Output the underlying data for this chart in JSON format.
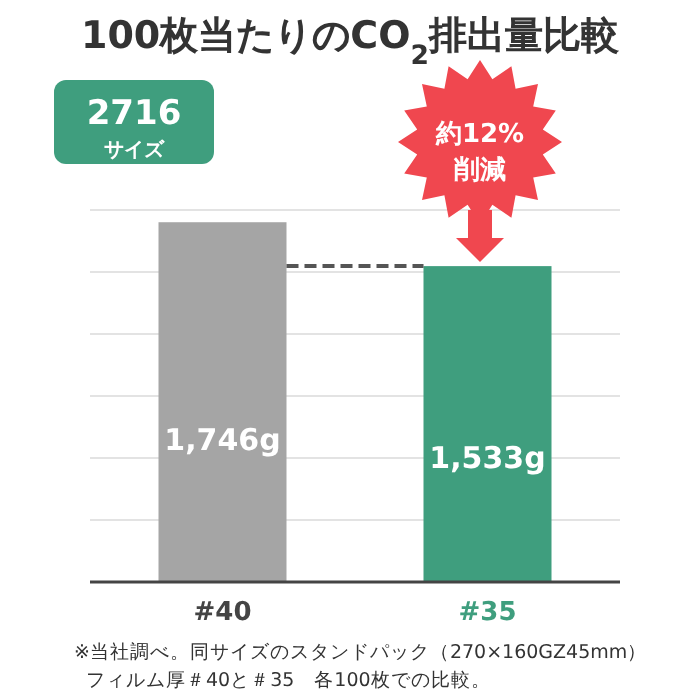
{
  "chart_data": {
    "type": "bar",
    "title": "100枚当たりのCO$_{2}$排出量比較",
    "categories": [
      "#40",
      "#35"
    ],
    "values": [
      1746,
      1533
    ],
    "colors": [
      "#a5a5a5",
      "#3f9e7e"
    ],
    "value_labels": [
      "1,746g",
      "1,533g"
    ],
    "grid": true,
    "ref_lines": [
      {
        "axis": "y",
        "value": 1533,
        "color": "#555555",
        "line_style": "dashed"
      }
    ],
    "annotations": [
      "2716",
      "サイズ",
      "約12%",
      "削減",
      "※当社調べ。同サイズのスタンドパック（270×160GZ45mm）",
      "フィルム厚＃40と＃35　各100枚での比較。"
    ]
  }
}
